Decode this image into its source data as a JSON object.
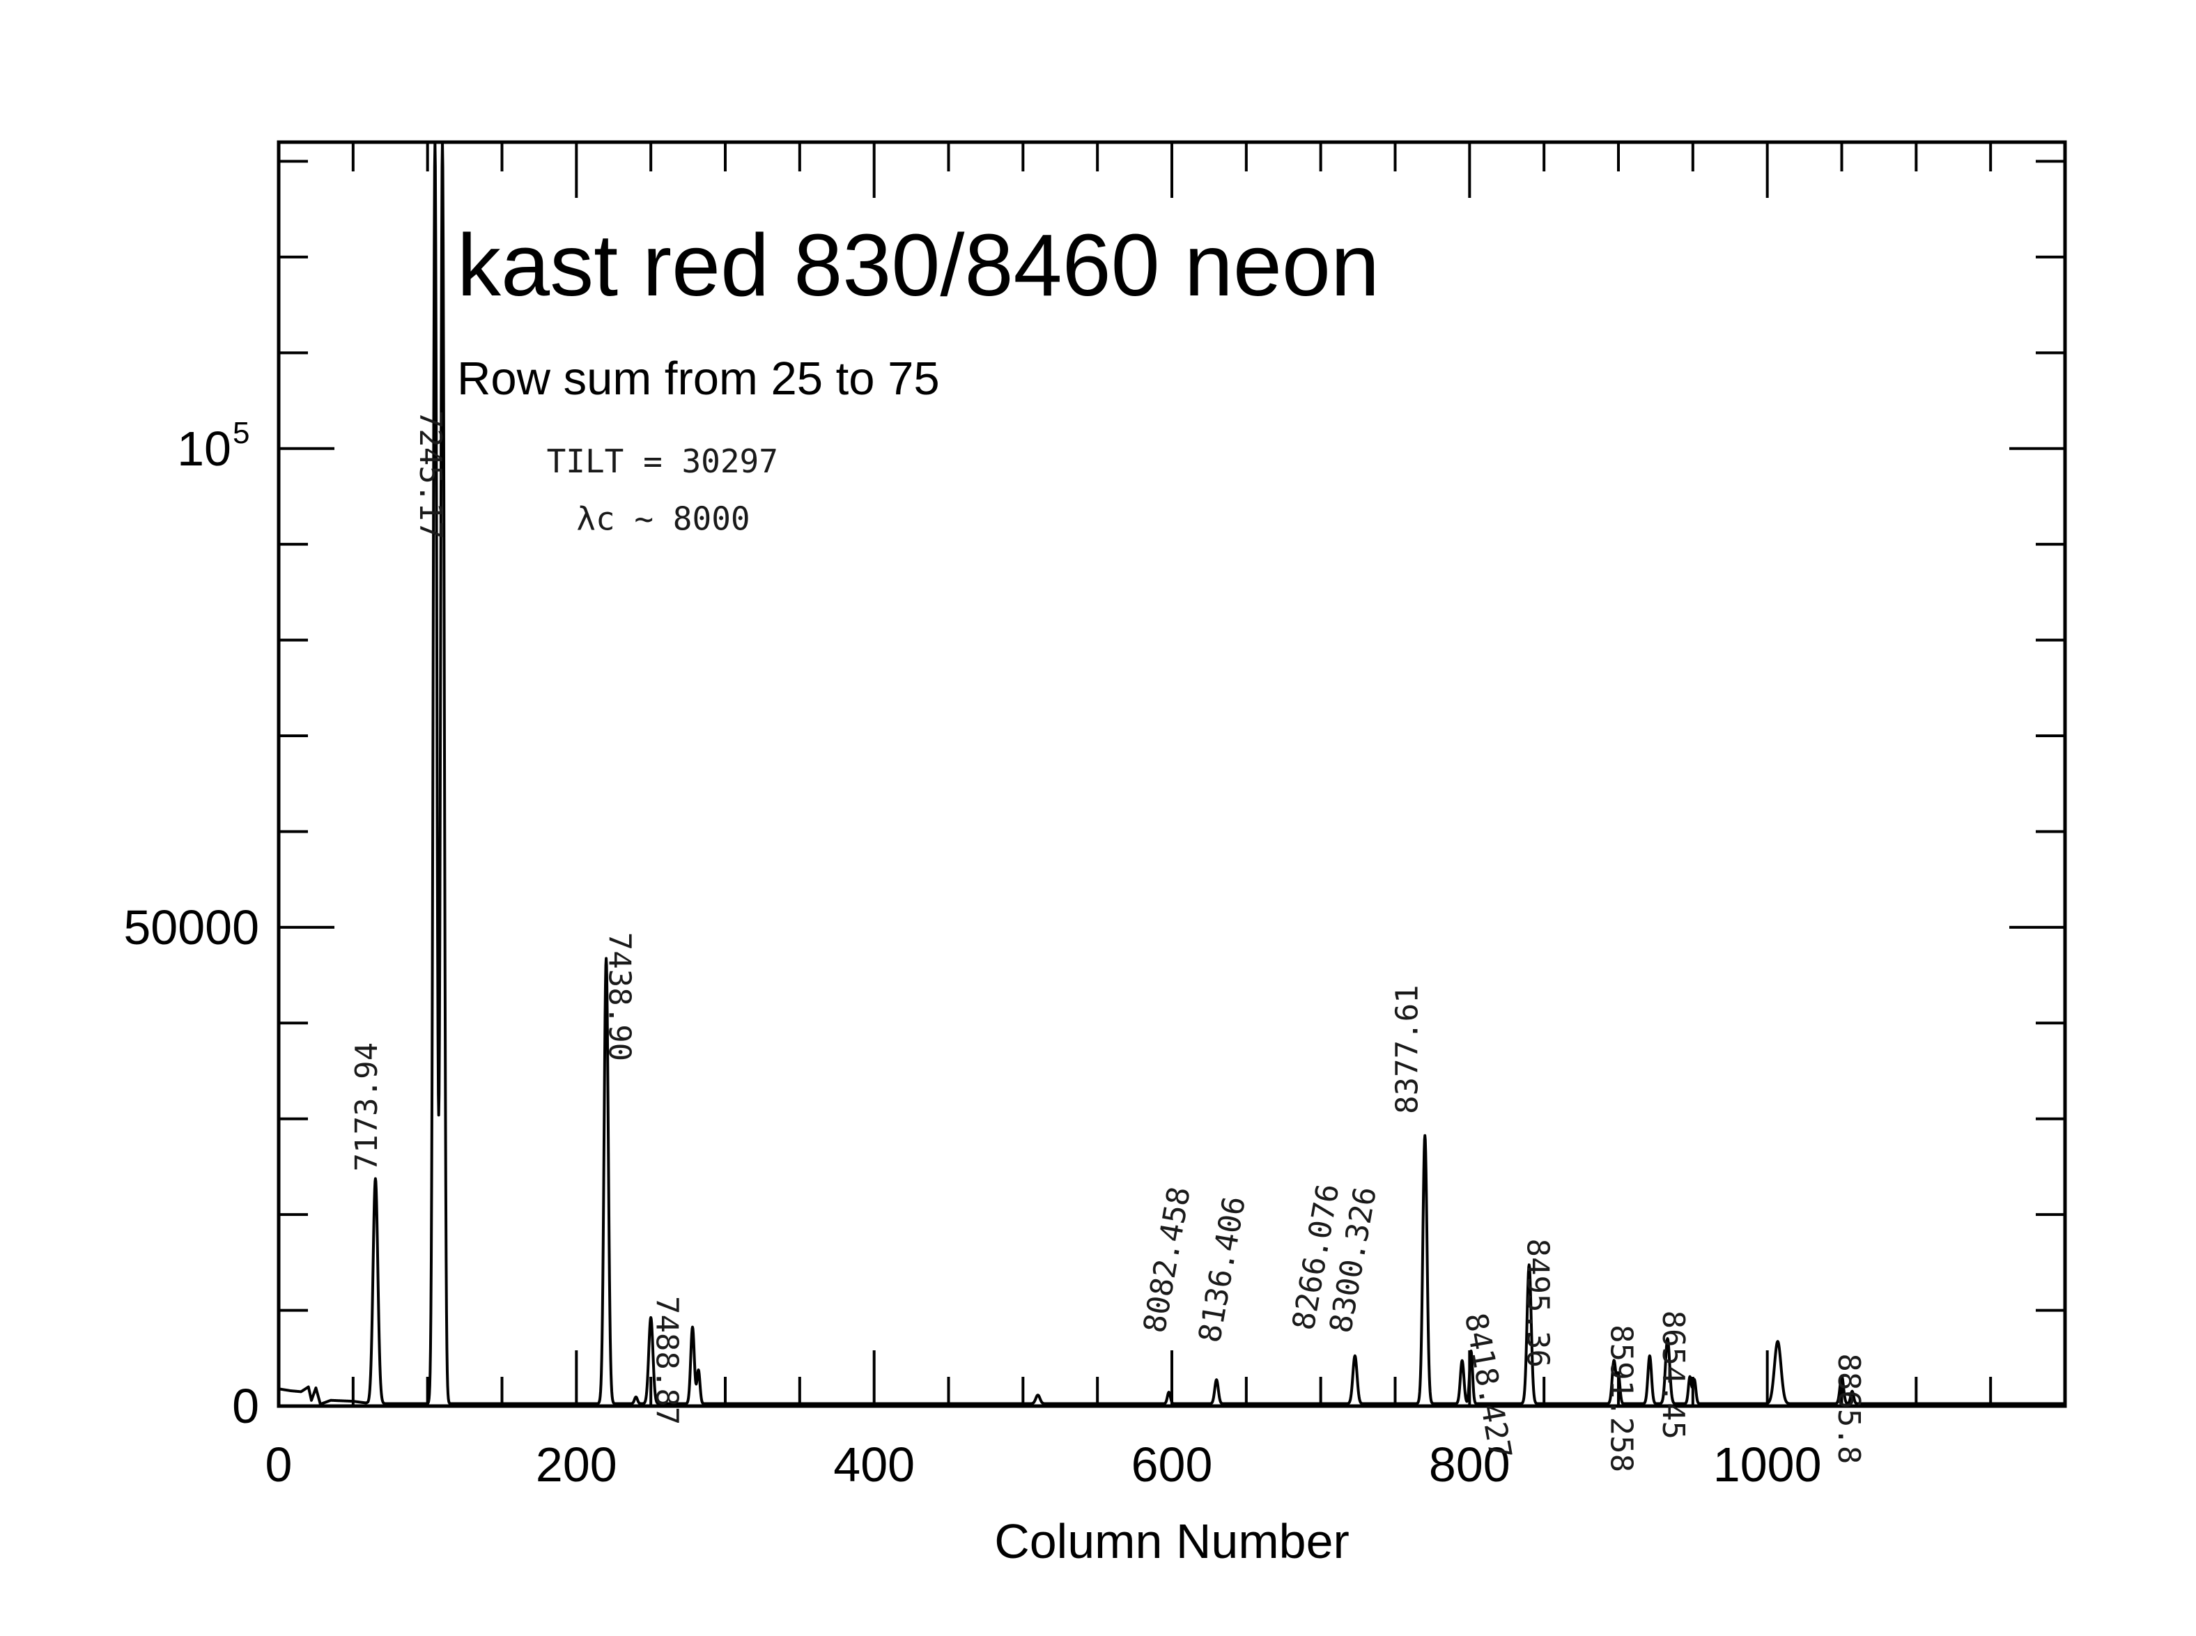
{
  "chart_data": {
    "type": "line",
    "title": "kast red 830/8460 neon",
    "subtitle": "Row sum from 25 to 75",
    "xlabel": "Column Number",
    "ylabel": "",
    "xlim": [
      0,
      1200
    ],
    "ylim": [
      0,
      132000
    ],
    "x_ticks": [
      {
        "value": 0,
        "label": "0"
      },
      {
        "value": 200,
        "label": "200"
      },
      {
        "value": 400,
        "label": "400"
      },
      {
        "value": 600,
        "label": "600"
      },
      {
        "value": 800,
        "label": "800"
      },
      {
        "value": 1000,
        "label": "1000"
      }
    ],
    "y_ticks": [
      {
        "value": 0,
        "label": "0"
      },
      {
        "value": 50000,
        "label": "50000"
      },
      {
        "value": 100000,
        "label": "10",
        "sup": "5"
      }
    ],
    "grid": false,
    "baseline_start": [
      [
        0,
        1800
      ],
      [
        8,
        1600
      ],
      [
        15,
        1500
      ],
      [
        20,
        2000
      ],
      [
        22,
        600
      ],
      [
        25,
        1900
      ],
      [
        28,
        200
      ],
      [
        35,
        600
      ],
      [
        50,
        500
      ],
      [
        60,
        300
      ]
    ],
    "series": [
      {
        "peaks": [
          {
            "x": 65,
            "y": 23500,
            "w": 1.6
          },
          {
            "x": 105,
            "y": 132000,
            "w": 1.2
          },
          {
            "x": 110,
            "y": 132000,
            "w": 1.2
          },
          {
            "x": 220,
            "y": 46500,
            "w": 1.4
          },
          {
            "x": 250,
            "y": 9000,
            "w": 1.4
          },
          {
            "x": 278,
            "y": 8000,
            "w": 1.2
          },
          {
            "x": 282,
            "y": 3500,
            "w": 1.0
          },
          {
            "x": 598,
            "y": 1200,
            "w": 1.0
          },
          {
            "x": 630,
            "y": 2500,
            "w": 1.2
          },
          {
            "x": 723,
            "y": 5000,
            "w": 1.4
          },
          {
            "x": 770,
            "y": 28000,
            "w": 1.4
          },
          {
            "x": 795,
            "y": 4500,
            "w": 1.2
          },
          {
            "x": 801,
            "y": 5500,
            "w": 1.0
          },
          {
            "x": 840,
            "y": 14500,
            "w": 1.4
          },
          {
            "x": 897,
            "y": 4500,
            "w": 1.2
          },
          {
            "x": 900,
            "y": 3000,
            "w": 1.0
          },
          {
            "x": 921,
            "y": 5000,
            "w": 1.2
          },
          {
            "x": 933,
            "y": 6800,
            "w": 1.4
          },
          {
            "x": 948,
            "y": 2800,
            "w": 1.0
          },
          {
            "x": 951,
            "y": 2500,
            "w": 1.0
          },
          {
            "x": 1007,
            "y": 6500,
            "w": 2.2
          },
          {
            "x": 1050,
            "y": 2900,
            "w": 1.2
          },
          {
            "x": 1057,
            "y": 1300,
            "w": 1.0
          },
          {
            "x": 510,
            "y": 900,
            "w": 1.4
          },
          {
            "x": 240,
            "y": 700,
            "w": 1.0
          }
        ]
      }
    ],
    "annotations": {
      "handwritten_lines": [
        {
          "text": "7173.94",
          "x": 66,
          "y": 24500,
          "rot": -90
        },
        {
          "text": "7245.17",
          "x": 95,
          "y": 104000,
          "rot": 90
        },
        {
          "text": "7438.90",
          "x": 222,
          "y": 49500,
          "rot": 90
        },
        {
          "text": "7488.87",
          "x": 254,
          "y": 11500,
          "rot": 90
        },
        {
          "text": "8082.458",
          "x": 595,
          "y": 7500,
          "rot": -80
        },
        {
          "text": "8136.406",
          "x": 632,
          "y": 6500,
          "rot": -80
        },
        {
          "text": "8266.076",
          "x": 695,
          "y": 7800,
          "rot": -80
        },
        {
          "text": "8300.326",
          "x": 720,
          "y": 7500,
          "rot": -80
        },
        {
          "text": "8377.61",
          "x": 765,
          "y": 30500,
          "rot": -90
        },
        {
          "text": "8418.427",
          "x": 797,
          "y": 9500,
          "rot": 80
        },
        {
          "text": "8495.36",
          "x": 839,
          "y": 17500,
          "rot": 90
        },
        {
          "text": "8591.258",
          "x": 895,
          "y": 8500,
          "rot": 90
        },
        {
          "text": "8654.45",
          "x": 930,
          "y": 10000,
          "rot": 90
        },
        {
          "text": "8865.8",
          "x": 1048,
          "y": 5500,
          "rot": 90
        }
      ],
      "notes": [
        {
          "text": "TILT = 30297",
          "x": 180,
          "y": 97500
        },
        {
          "text": "λc ~ 8000",
          "x": 200,
          "y": 91500
        }
      ]
    }
  }
}
